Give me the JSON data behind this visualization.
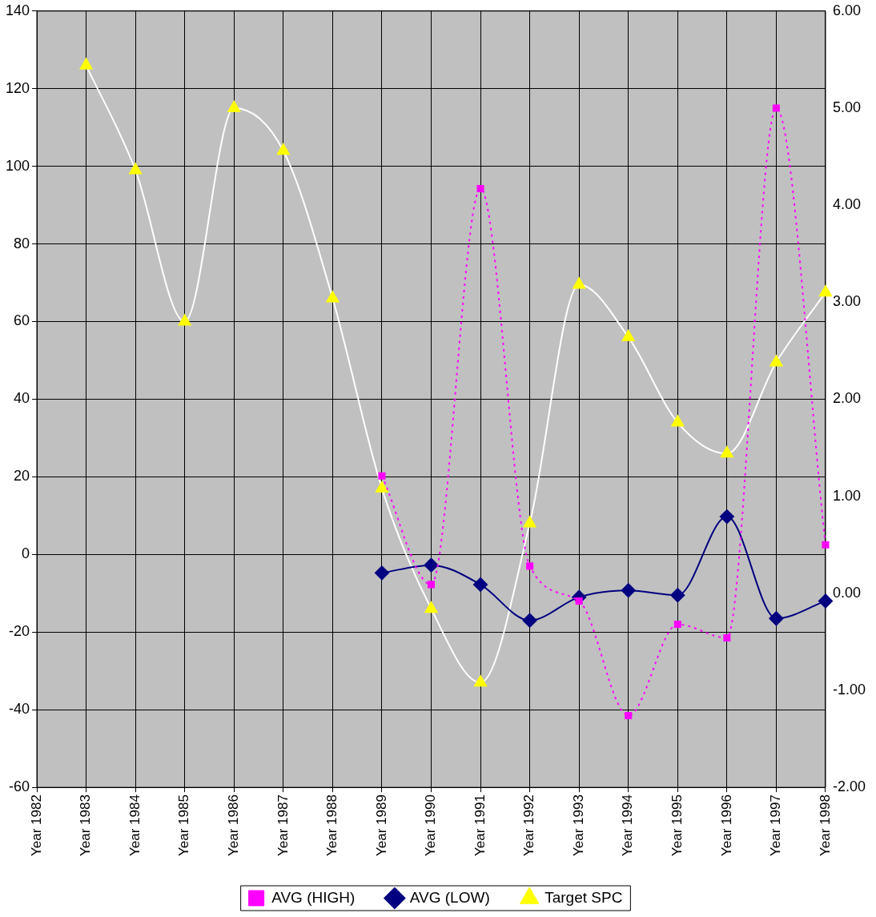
{
  "chart_data": {
    "type": "line",
    "categories": [
      "Year 1982",
      "Year 1983",
      "Year 1984",
      "Year 1985",
      "Year 1986",
      "Year 1987",
      "Year 1988",
      "Year 1989",
      "Year 1990",
      "Year 1991",
      "Year 1992",
      "Year 1993",
      "Year 1994",
      "Year 1995",
      "Year 1996",
      "Year 1997",
      "Year 1998"
    ],
    "series": [
      {
        "name": "AVG (HIGH)",
        "color": "#ff00ff",
        "axis": "y2",
        "marker": "square",
        "line_style": "dotted",
        "values": [
          null,
          null,
          null,
          null,
          null,
          null,
          null,
          1.21,
          0.09,
          4.17,
          0.28,
          -0.08,
          -1.26,
          -0.32,
          -0.46,
          5.0,
          0.5
        ]
      },
      {
        "name": "AVG (LOW)",
        "color": "#000080",
        "axis": "y2",
        "marker": "diamond",
        "line_style": "solid",
        "values": [
          null,
          null,
          null,
          null,
          null,
          null,
          null,
          0.21,
          0.29,
          0.09,
          -0.28,
          -0.04,
          0.03,
          -0.02,
          0.79,
          -0.26,
          -0.08
        ]
      },
      {
        "name": "Target SPC",
        "color": "#ffff00",
        "axis": "y",
        "marker": "triangle",
        "line_style": "solid",
        "values": [
          null,
          126,
          99,
          60,
          115,
          104,
          66,
          17,
          -14,
          -33,
          8,
          69.5,
          56,
          34,
          26,
          49.5,
          67.5
        ]
      }
    ],
    "ylim": [
      -60,
      140
    ],
    "yticks": [
      -60,
      -40,
      -20,
      0,
      20,
      40,
      60,
      80,
      100,
      120,
      140
    ],
    "y2lim": [
      -2,
      6
    ],
    "y2ticks": [
      {
        "value": -2,
        "label": "-2.00"
      },
      {
        "value": -1,
        "label": "-1.00"
      },
      {
        "value": 0,
        "label": "0.00"
      },
      {
        "value": 1,
        "label": "1.00"
      },
      {
        "value": 2,
        "label": "2.00"
      },
      {
        "value": 3,
        "label": "3.00"
      },
      {
        "value": 4,
        "label": "4.00"
      },
      {
        "value": 5,
        "label": "5.00"
      },
      {
        "value": 6,
        "label": "6.00"
      }
    ],
    "grid": true,
    "legend": "bottom"
  }
}
